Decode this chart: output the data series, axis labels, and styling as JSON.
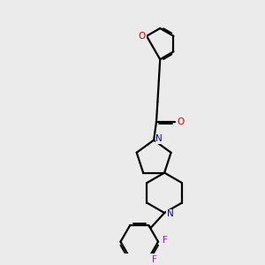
{
  "bg_color": "#ebebeb",
  "bond_color": "#000000",
  "nitrogen_color": "#0000cc",
  "oxygen_color": "#dd0000",
  "fluorine_color": "#cc00cc",
  "line_width": 1.6,
  "fig_width": 3.0,
  "fig_height": 3.0,
  "dpi": 100,
  "xlim": [
    0,
    10
  ],
  "ylim": [
    0,
    10
  ]
}
